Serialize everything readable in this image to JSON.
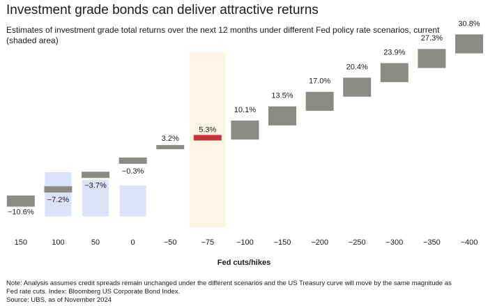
{
  "title": "Investment grade bonds can deliver attractive returns",
  "subtitle": "Estimates of investment grade total returns over the next 12 months under different Fed policy rate scenarios, current (shaded area)",
  "chart_data": {
    "type": "bar",
    "categories": [
      "150",
      "100",
      "50",
      "0",
      "−50",
      "−75",
      "−100",
      "−150",
      "−200",
      "−250",
      "−300",
      "−350",
      "−400"
    ],
    "values": [
      -10.6,
      -7.2,
      -3.7,
      -0.3,
      3.2,
      5.3,
      10.1,
      13.5,
      17.0,
      20.4,
      23.9,
      27.3,
      30.8
    ],
    "labels": [
      "−10.6%",
      "−7.2%",
      "−3.7%",
      "−0.3%",
      "3.2%",
      "5.3%",
      "10.1%",
      "13.5%",
      "17.0%",
      "20.4%",
      "23.9%",
      "27.3%",
      "30.8%"
    ],
    "negative_range_base": [
      -10.6,
      -10.6,
      -10.6,
      -10.6
    ],
    "highlight_category": "−75",
    "xlabel": "Fed cuts/hikes",
    "ylabel": "",
    "ylim": [
      -13,
      33
    ],
    "grid": false,
    "colors": {
      "bar": "#8b8b86",
      "highlight": "#c8323c",
      "negative_range": "#dde2f8",
      "current_shade": "#fbf6e3"
    }
  },
  "notes": [
    "Note: Analysis assumes credit spreads remain unchanged under the different scenarios and the US Treasury curve will move by the same magnitude as",
    "Fed rate cuts. Index: Bloomberg US Corporate Bond Index.",
    "Source: UBS, as of November 2024"
  ]
}
